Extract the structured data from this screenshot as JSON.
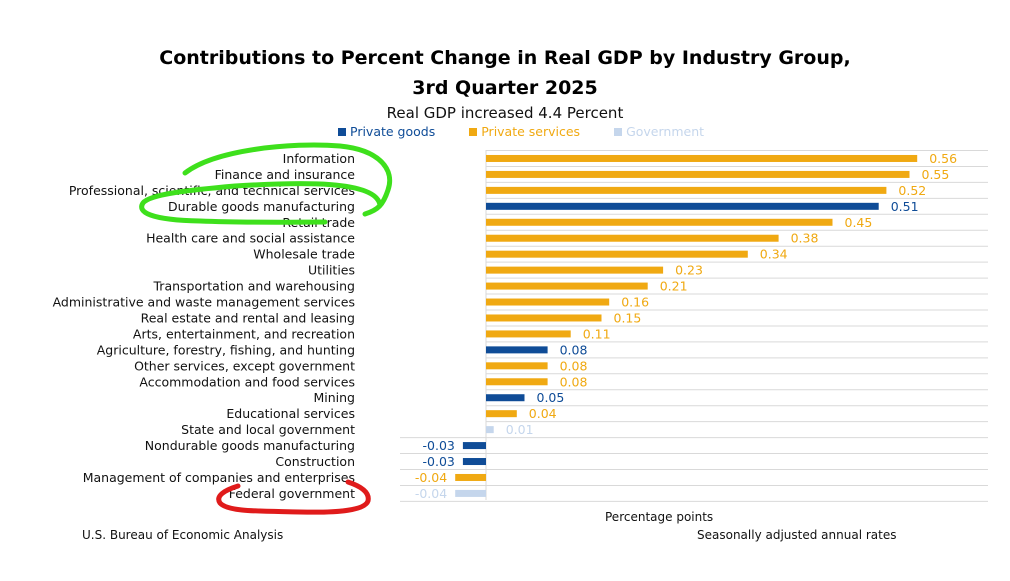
{
  "chart_data": {
    "type": "bar",
    "orientation": "horizontal",
    "title": "Contributions to Percent Change in Real GDP by Industry Group,",
    "title_line2": "3rd Quarter 2025",
    "subtitle": "Real GDP increased 4.4 Percent",
    "xlabel": "Percentage points",
    "ylabel": "",
    "xlim": [
      -0.04,
      0.56
    ],
    "grid": "horizontal",
    "legend_placement": "top-center",
    "legend": [
      {
        "name": "Private goods",
        "color": "#0f4c97"
      },
      {
        "name": "Private services",
        "color": "#f0a912"
      },
      {
        "name": "Government",
        "color": "#c5d6ec"
      }
    ],
    "categories": [
      "Information",
      "Finance and insurance",
      "Professional, scientific, and technical services",
      "Durable goods manufacturing",
      "Retail trade",
      "Health care and social assistance",
      "Wholesale trade",
      "Utilities",
      "Transportation and warehousing",
      "Administrative and waste management services",
      "Real estate and rental and leasing",
      "Arts, entertainment, and recreation",
      "Agriculture, forestry, fishing, and hunting",
      "Other services, except government",
      "Accommodation and food services",
      "Mining",
      "Educational services",
      "State and local government",
      "Nondurable goods manufacturing",
      "Construction",
      "Management of companies and enterprises",
      "Federal government"
    ],
    "values": [
      0.56,
      0.55,
      0.52,
      0.51,
      0.45,
      0.38,
      0.34,
      0.23,
      0.21,
      0.16,
      0.15,
      0.11,
      0.08,
      0.08,
      0.08,
      0.05,
      0.04,
      0.01,
      -0.03,
      -0.03,
      -0.04,
      -0.04
    ],
    "groups": [
      "Private services",
      "Private services",
      "Private services",
      "Private goods",
      "Private services",
      "Private services",
      "Private services",
      "Private services",
      "Private services",
      "Private services",
      "Private services",
      "Private services",
      "Private goods",
      "Private services",
      "Private services",
      "Private goods",
      "Private services",
      "Government",
      "Private goods",
      "Private goods",
      "Private services",
      "Government"
    ],
    "data_labels": [
      "0.56",
      "0.55",
      "0.52",
      "0.51",
      "0.45",
      "0.38",
      "0.34",
      "0.23",
      "0.21",
      "0.16",
      "0.15",
      "0.11",
      "0.08",
      "0.08",
      "0.08",
      "0.05",
      "0.04",
      "0.01",
      "-0.03",
      "-0.03",
      "-0.04",
      "-0.04"
    ],
    "annotations": [
      {
        "type": "hand-drawn-circle",
        "color": "#3ee01c",
        "encloses": [
          "Information",
          "Finance and insurance",
          "Professional, scientific, and technical services",
          "Durable goods manufacturing",
          "Retail trade"
        ]
      },
      {
        "type": "hand-drawn-underline",
        "color": "#e01b1b",
        "encloses": [
          "Federal government"
        ]
      }
    ]
  },
  "footer": {
    "source": "U.S. Bureau of Economic Analysis",
    "note": "Seasonally adjusted annual rates"
  }
}
